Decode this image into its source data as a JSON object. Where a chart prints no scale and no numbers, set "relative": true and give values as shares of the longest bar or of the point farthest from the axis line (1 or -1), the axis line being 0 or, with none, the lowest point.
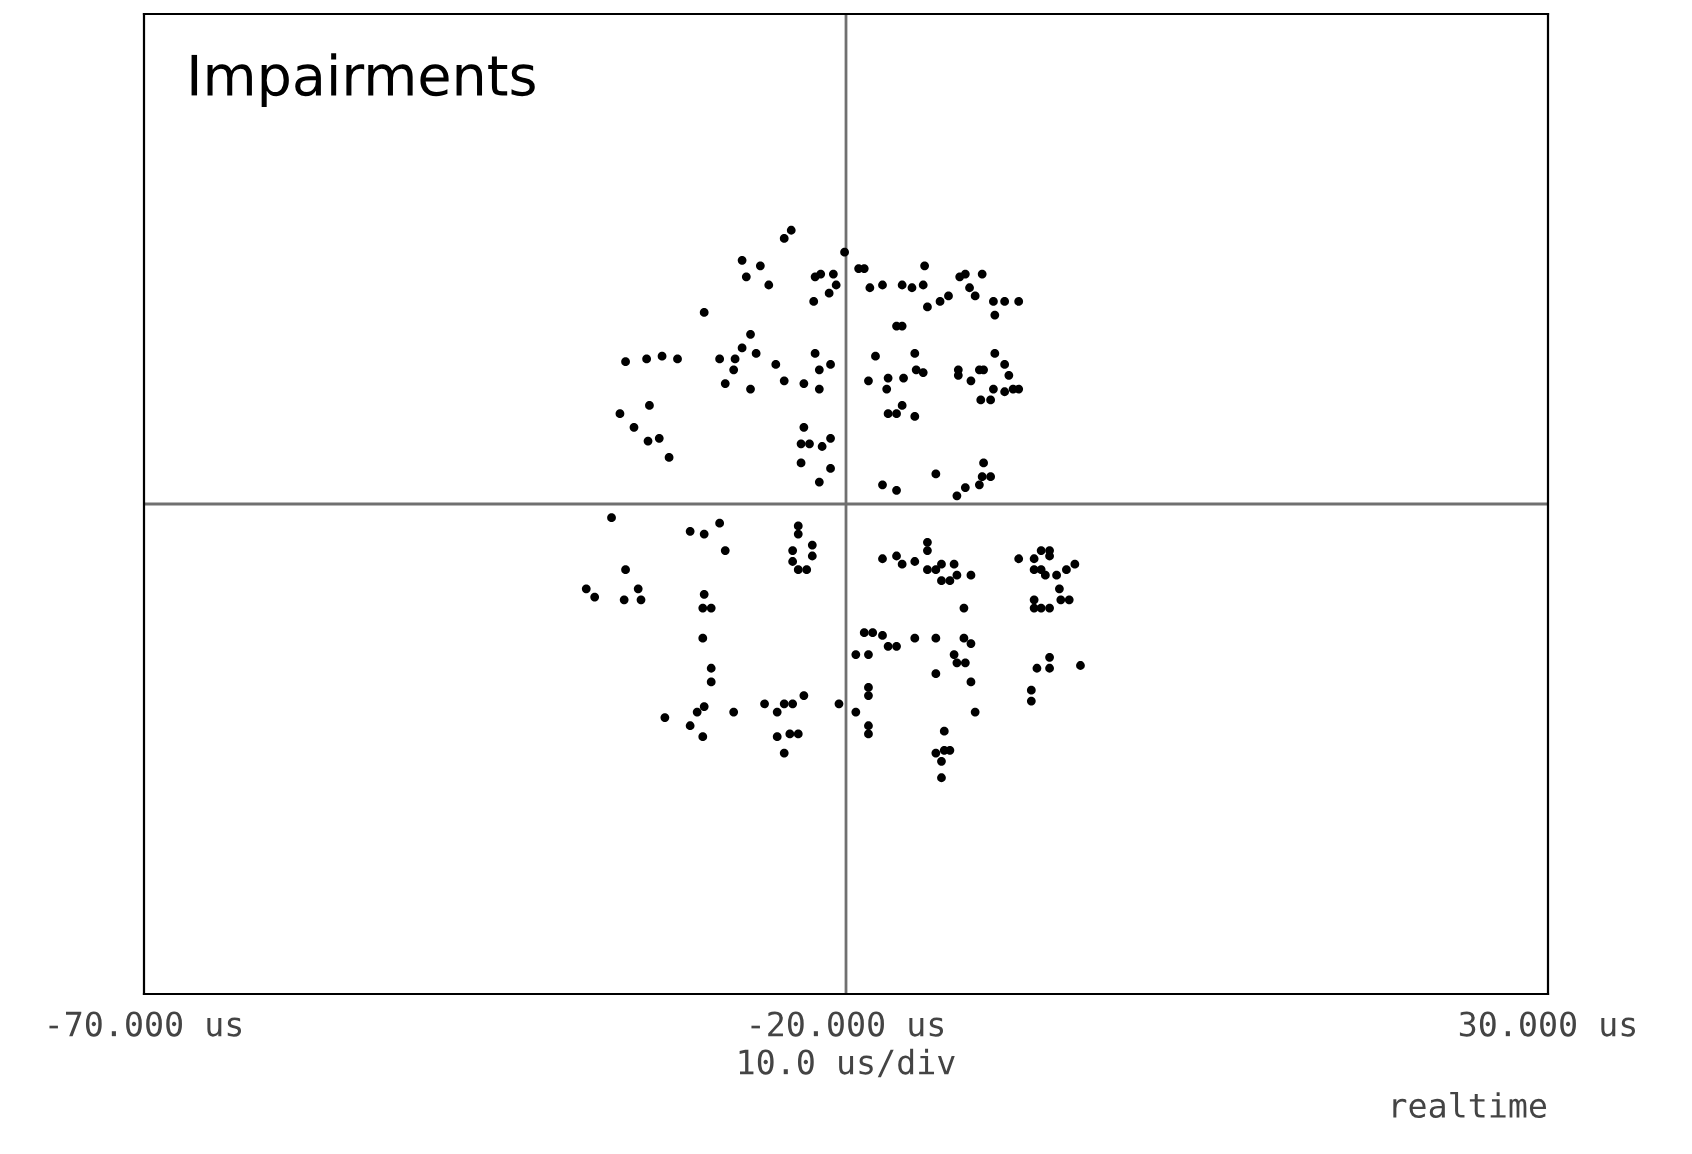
{
  "chart_data": {
    "type": "scatter",
    "title": "Impairments",
    "xlabel": "10.0 us/div",
    "annotations": [
      "realtime"
    ],
    "relative": true,
    "marker": "circle",
    "grid": false,
    "xlim": [
      -70,
      30
    ],
    "xticks": [
      {
        "value": -70,
        "label": "-70.000 us"
      },
      {
        "value": -20,
        "label": "-20.000 us"
      },
      {
        "value": 30,
        "label": "30.000 us"
      }
    ],
    "ref_lines": [
      {
        "axis": "x",
        "value": -20,
        "color": "#707070"
      },
      {
        "axis": "y",
        "value": 0,
        "color": "#707070"
      }
    ],
    "series": [
      {
        "color": "#000000",
        "x": [
          -23.9,
          -24.4,
          -27.4,
          -27.1,
          -26.1,
          -25.5,
          -30.1,
          -35.7,
          -34.2,
          -33.1,
          -32.0,
          -29.0,
          -27.9,
          -27.4,
          -26.8,
          -26.4,
          -28.6,
          -26.8,
          -28.0,
          -25.0,
          -24.4,
          -23.0,
          -21.9,
          -22.2,
          -21.9,
          -21.1,
          -36.1,
          -35.1,
          -34.0,
          -34.1,
          -33.3,
          -32.6,
          -23.0,
          -23.2,
          -22.6,
          -21.7,
          -21.1,
          -23.2,
          -21.9,
          -21.1,
          -22.2,
          -21.8,
          -20.9,
          -21.2,
          -20.7,
          -22.3,
          -20.1,
          -19.1,
          -18.7,
          -18.3,
          -17.4,
          -16.0,
          -15.3,
          -14.4,
          -14.5,
          -14.2,
          -13.3,
          -12.7,
          -11.9,
          -11.5,
          -11.2,
          -10.8,
          -10.3,
          -9.5,
          -8.7,
          -7.7,
          -9.4,
          -16.4,
          -16.0,
          -17.9,
          -15.1,
          -15.0,
          -14.5,
          -12.0,
          -12.0,
          -10.5,
          -10.2,
          -9.4,
          -8.7,
          -8.4,
          -11.1,
          -8.1,
          -7.7,
          -8.7,
          -9.5,
          -10.4,
          -9.7,
          -18.4,
          -17.1,
          -17.0,
          -15.9,
          -17.0,
          -16.4,
          -16.0,
          -15.1,
          -17.4,
          -16.4,
          -13.6,
          -10.2,
          -10.3,
          -9.7,
          -10.5,
          -11.5,
          -12.1,
          -36.7,
          -31.1,
          -30.1,
          -29.0,
          -28.6,
          -35.7,
          -38.5,
          -37.9,
          -35.8,
          -34.8,
          -34.6,
          -30.1,
          -30.2,
          -29.6,
          -30.2,
          -29.6,
          -29.6,
          -32.9,
          -31.1,
          -30.6,
          -30.1,
          -30.2,
          -28.0,
          -25.8,
          -24.9,
          -24.4,
          -23.8,
          -23.0,
          -24.0,
          -23.4,
          -24.9,
          -24.4,
          -23.4,
          -23.4,
          -23.8,
          -23.8,
          -23.4,
          -22.8,
          -22.4,
          -22.4,
          -20.5,
          -17.4,
          -16.4,
          -16.0,
          -15.1,
          -14.2,
          -14.2,
          -14.2,
          -13.6,
          -13.2,
          -13.2,
          -12.6,
          -12.3,
          -12.1,
          -11.1,
          -11.6,
          -18.7,
          -18.1,
          -17.4,
          -17.0,
          -16.4,
          -15.1,
          -13.6,
          -11.6,
          -11.1,
          -12.3,
          -11.5,
          -12.1,
          -13.6,
          -11.1,
          -10.8,
          -18.4,
          -18.4,
          -19.3,
          -18.4,
          -18.4,
          -13.0,
          -13.6,
          -13.0,
          -12.6,
          -13.2,
          -13.2,
          -19.3,
          -18.4,
          -7.7,
          -6.6,
          -6.1,
          -5.5,
          -5.5,
          -6.6,
          -6.1,
          -5.8,
          -5.0,
          -4.3,
          -3.7,
          -4.8,
          -4.7,
          -4.1,
          -6.6,
          -6.6,
          -6.1,
          -5.5,
          -5.5,
          -5.5,
          -6.4,
          -3.3,
          -6.8,
          -6.8
        ],
        "values": [
          1.0,
          0.97,
          0.89,
          0.83,
          0.87,
          0.8,
          0.7,
          0.52,
          0.53,
          0.54,
          0.53,
          0.53,
          0.53,
          0.57,
          0.62,
          0.55,
          0.44,
          0.42,
          0.49,
          0.51,
          0.45,
          0.44,
          0.42,
          0.55,
          0.49,
          0.51,
          0.33,
          0.28,
          0.36,
          0.23,
          0.24,
          0.17,
          0.28,
          0.22,
          0.22,
          0.21,
          0.24,
          0.15,
          0.08,
          0.13,
          0.83,
          0.84,
          0.84,
          0.77,
          0.8,
          0.74,
          0.92,
          0.86,
          0.86,
          0.79,
          0.8,
          0.8,
          0.79,
          0.87,
          0.8,
          0.72,
          0.74,
          0.76,
          0.83,
          0.84,
          0.79,
          0.76,
          0.84,
          0.74,
          0.74,
          0.74,
          0.69,
          0.65,
          0.65,
          0.54,
          0.55,
          0.49,
          0.48,
          0.49,
          0.47,
          0.49,
          0.49,
          0.55,
          0.51,
          0.47,
          0.45,
          0.42,
          0.42,
          0.41,
          0.42,
          0.38,
          0.38,
          0.45,
          0.42,
          0.46,
          0.46,
          0.33,
          0.33,
          0.36,
          0.32,
          0.07,
          0.05,
          0.11,
          0.15,
          0.1,
          0.1,
          0.07,
          0.06,
          0.03,
          -0.05,
          -0.1,
          -0.11,
          -0.07,
          -0.17,
          -0.24,
          -0.31,
          -0.34,
          -0.35,
          -0.31,
          -0.35,
          -0.33,
          -0.38,
          -0.38,
          -0.49,
          -0.6,
          -0.65,
          -0.78,
          -0.81,
          -0.76,
          -0.74,
          -0.85,
          -0.76,
          -0.73,
          -0.76,
          -0.73,
          -0.73,
          -0.7,
          -0.84,
          -0.84,
          -0.85,
          -0.91,
          -0.08,
          -0.11,
          -0.17,
          -0.21,
          -0.24,
          -0.24,
          -0.15,
          -0.19,
          -0.73,
          -0.2,
          -0.19,
          -0.22,
          -0.21,
          -0.14,
          -0.17,
          -0.24,
          -0.24,
          -0.22,
          -0.28,
          -0.28,
          -0.22,
          -0.26,
          -0.26,
          -0.38,
          -0.47,
          -0.47,
          -0.48,
          -0.52,
          -0.52,
          -0.49,
          -0.49,
          -0.49,
          -0.51,
          -0.55,
          -0.58,
          -0.58,
          -0.62,
          -0.65,
          -0.76,
          -0.67,
          -0.7,
          -0.76,
          -0.81,
          -0.84,
          -0.83,
          -0.91,
          -0.9,
          -0.9,
          -0.94,
          -1.0,
          -0.55,
          -0.55,
          -0.2,
          -0.2,
          -0.17,
          -0.17,
          -0.19,
          -0.24,
          -0.24,
          -0.26,
          -0.26,
          -0.24,
          -0.22,
          -0.31,
          -0.35,
          -0.35,
          -0.35,
          -0.38,
          -0.38,
          -0.38,
          -0.56,
          -0.6,
          -0.6,
          -0.59,
          -0.68,
          -0.72
        ]
      }
    ]
  }
}
